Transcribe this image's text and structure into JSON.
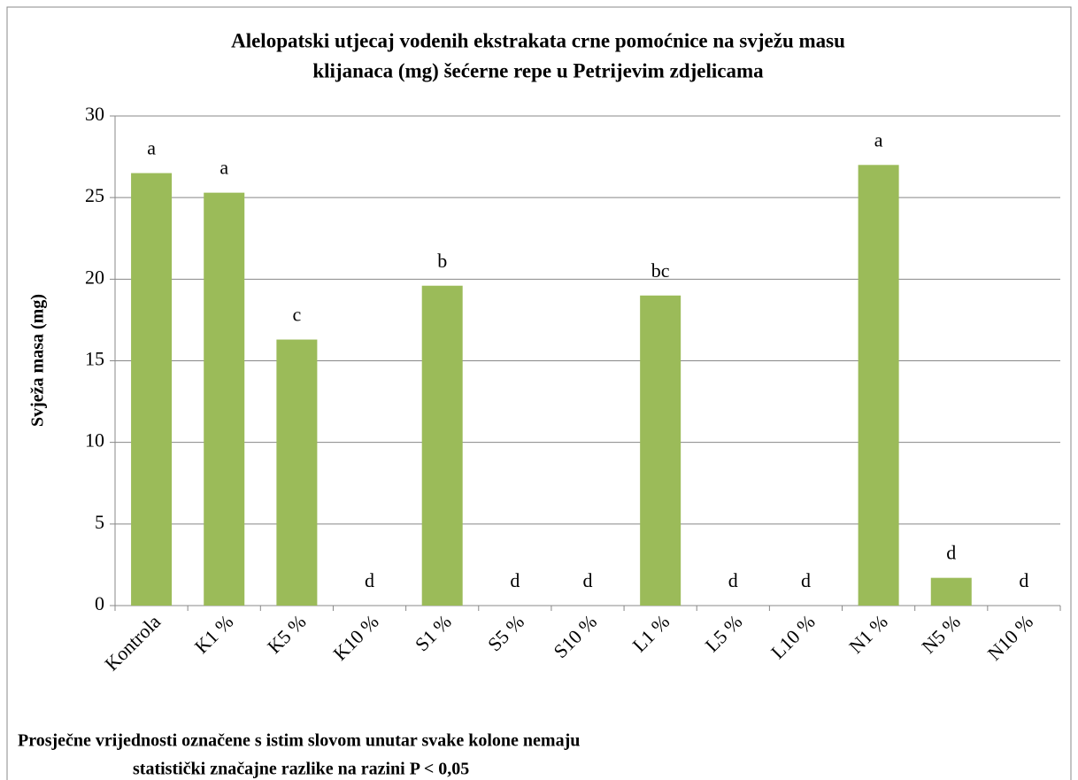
{
  "chart_data": {
    "type": "bar",
    "title": [
      "Alelopatski utjecaj vodenih ekstrakata crne pomoćnice na svježu masu",
      "klijanaca (mg) šećerne repe u Petrijevim zdjelicama"
    ],
    "y_label": "Svježa masa (mg)",
    "categories": [
      "Kontrola",
      "K1 %",
      "K5 %",
      "K10 %",
      "S1 %",
      "S5 %",
      "S10 %",
      "L1 %",
      "L5 %",
      "L10 %",
      "N1 %",
      "N5 %",
      "N10 %"
    ],
    "values": [
      26.5,
      25.3,
      16.3,
      0,
      19.6,
      0,
      0,
      19.0,
      0,
      0,
      27.0,
      1.7,
      0
    ],
    "annotations": [
      "a",
      "a",
      "c",
      "d",
      "b",
      "d",
      "d",
      "bc",
      "d",
      "d",
      "a",
      "d",
      "d"
    ],
    "color": "#9bbb59",
    "ylim": [
      0,
      30
    ],
    "yticks": [
      0,
      5,
      10,
      15,
      20,
      25,
      30
    ],
    "grid": true,
    "note": [
      "Prosječne vrijednosti označene s istim slovom unutar svake kolone nemaju",
      "statistički značajne razlike na razini P < 0,05"
    ]
  }
}
